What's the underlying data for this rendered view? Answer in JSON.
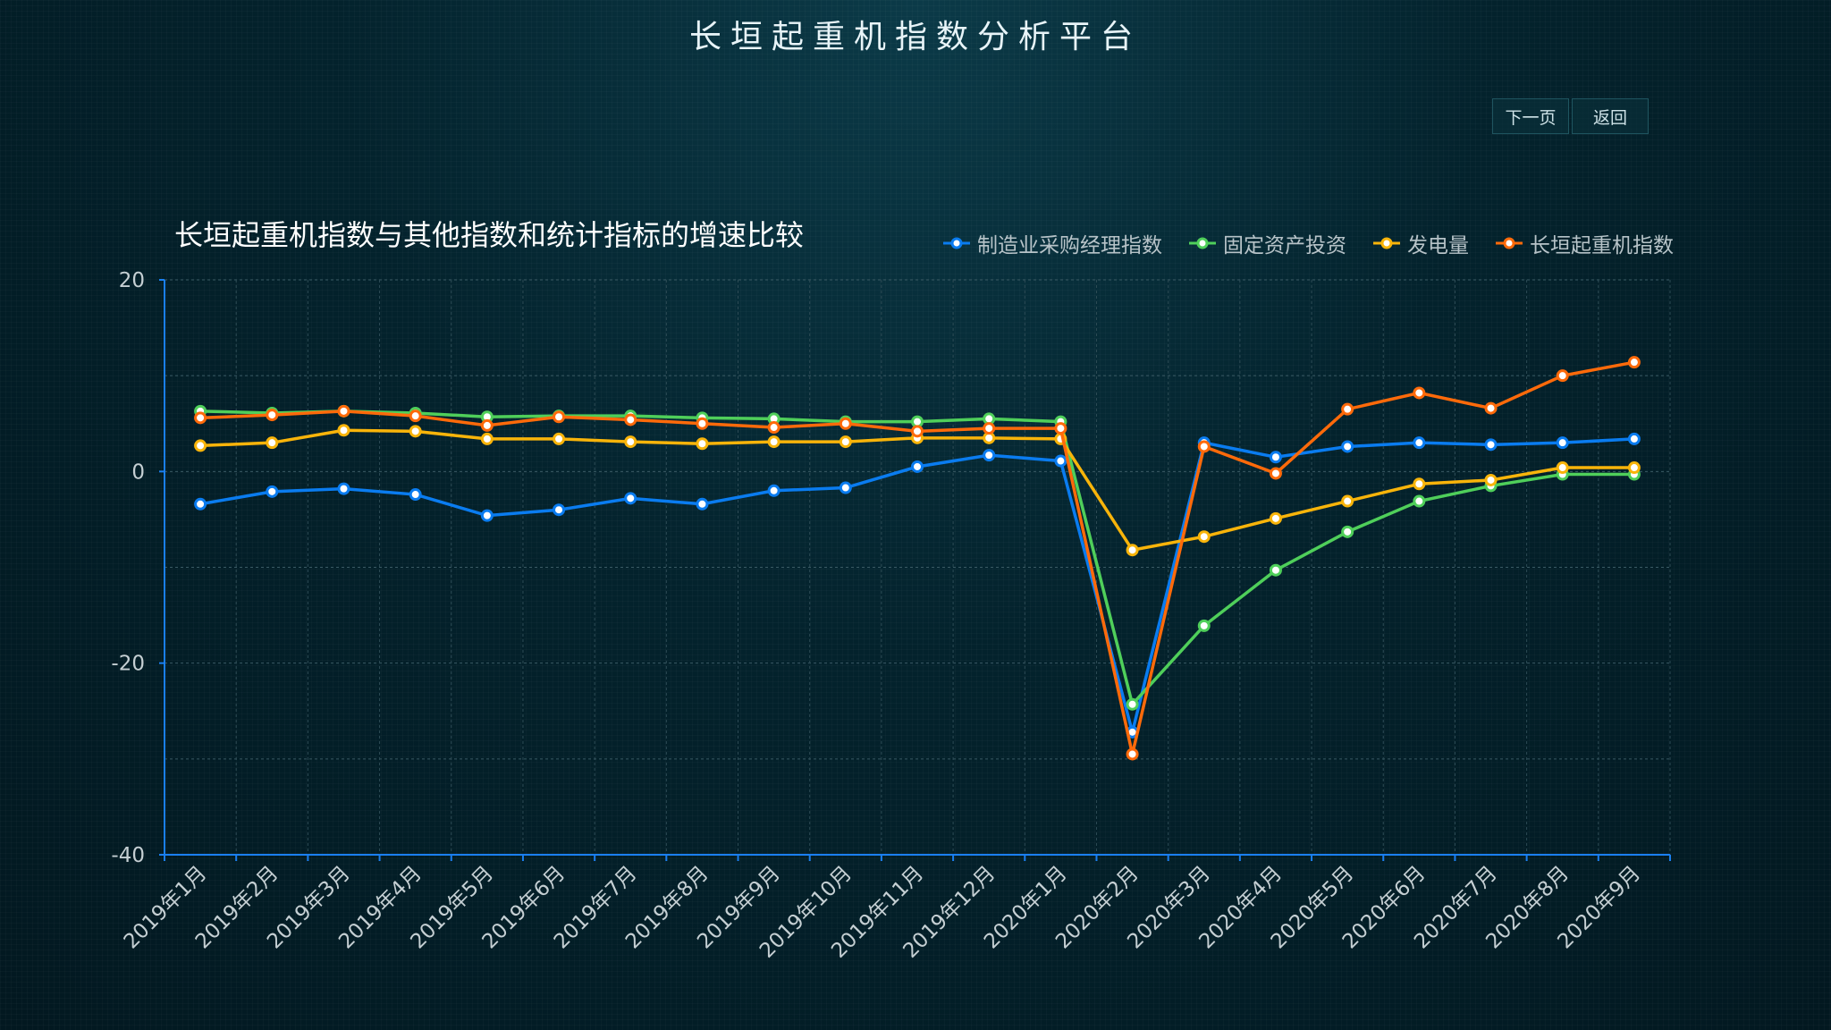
{
  "header": {
    "title": "长垣起重机指数分析平台"
  },
  "nav": {
    "next_label": "下一页",
    "back_label": "返回"
  },
  "chart_data": {
    "type": "line",
    "title": "长垣起重机指数与其他指数和统计指标的增速比较",
    "legend_position": "top-right",
    "grid": true,
    "ylim": [
      -40,
      20
    ],
    "yticks": [
      20,
      0,
      -20,
      -40
    ],
    "categories": [
      "2019年1月",
      "2019年2月",
      "2019年3月",
      "2019年4月",
      "2019年5月",
      "2019年6月",
      "2019年7月",
      "2019年8月",
      "2019年9月",
      "2019年10月",
      "2019年11月",
      "2019年12月",
      "2020年1月",
      "2020年2月",
      "2020年3月",
      "2020年4月",
      "2020年5月",
      "2020年6月",
      "2020年7月",
      "2020年8月",
      "2020年9月"
    ],
    "series": [
      {
        "name": "制造业采购经理指数",
        "color": "#0a7cf0",
        "values": [
          -3.4,
          -2.1,
          -1.8,
          -2.4,
          -4.6,
          -4.0,
          -2.8,
          -3.4,
          -2.0,
          -1.7,
          0.5,
          1.7,
          1.1,
          -27.2,
          3.0,
          1.5,
          2.6,
          3.0,
          2.8,
          3.0,
          3.4
        ]
      },
      {
        "name": "固定资产投资",
        "color": "#4fcf5a",
        "values": [
          6.3,
          6.1,
          6.3,
          6.1,
          5.7,
          5.8,
          5.8,
          5.6,
          5.5,
          5.2,
          5.2,
          5.5,
          5.2,
          -24.3,
          -16.1,
          -10.3,
          -6.3,
          -3.1,
          -1.5,
          -0.3,
          -0.3
        ]
      },
      {
        "name": "发电量",
        "color": "#f8b40a",
        "values": [
          2.7,
          3.0,
          4.3,
          4.2,
          3.4,
          3.4,
          3.1,
          2.9,
          3.1,
          3.1,
          3.5,
          3.5,
          3.4,
          -8.2,
          -6.8,
          -4.9,
          -3.1,
          -1.3,
          -0.9,
          0.4,
          0.4
        ]
      },
      {
        "name": "长垣起重机指数",
        "color": "#ff6a0a",
        "values": [
          5.6,
          5.9,
          6.3,
          5.8,
          4.8,
          5.7,
          5.4,
          5.0,
          4.6,
          5.0,
          4.2,
          4.5,
          4.5,
          -29.5,
          2.6,
          -0.2,
          6.5,
          8.2,
          6.6,
          10.0,
          11.4
        ]
      }
    ]
  }
}
